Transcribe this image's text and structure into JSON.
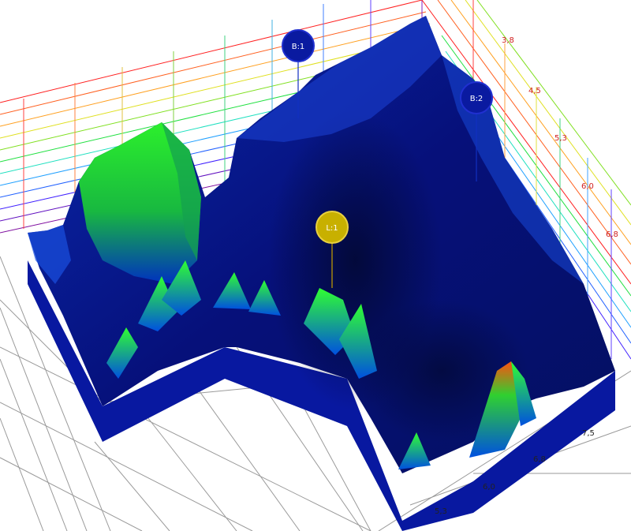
{
  "scene": {
    "colors": {
      "floor_grid": "#9a9a9a",
      "terrain_low": "#00108a",
      "terrain_mid": "#0040e0",
      "terrain_high": "#20e020",
      "peak": "#ff6000"
    }
  },
  "axes": {
    "right_wall_ticks": [
      "3,8",
      "4,5",
      "5,3",
      "6,0",
      "6,8"
    ],
    "floor_ticks": [
      "5,3",
      "6,0",
      "6,8",
      "7,5"
    ],
    "tick_color_wall": "#d02020",
    "tick_color_floor": "#222222"
  },
  "markers": [
    {
      "id": "b1",
      "label": "B:1",
      "color": "#0a1aa0"
    },
    {
      "id": "b2",
      "label": "B:2",
      "color": "#0a1aa0"
    },
    {
      "id": "l1",
      "label": "L:1",
      "color": "#c8b000"
    }
  ]
}
